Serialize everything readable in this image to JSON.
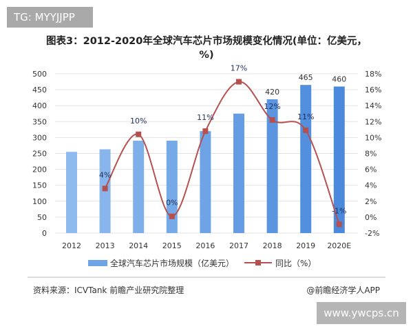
{
  "tag": "TG: MYYJJPP",
  "title": "图表3：2012-2020年全球汽车芯片市场规模变化情况(单位：亿美元，%)",
  "source": "资料来源：ICVTank 前瞻产业研究院整理",
  "credit": "@前瞻经济学人APP",
  "watermark": "www.ywcps.cn",
  "chart_data": {
    "type": "bar+line",
    "categories": [
      "2012",
      "2013",
      "2014",
      "2015",
      "2016",
      "2017",
      "2018",
      "2019",
      "2020E"
    ],
    "series": [
      {
        "name": "全球汽车芯片市场规模（亿美元）",
        "type": "bar",
        "axis": "left",
        "values": [
          255,
          263,
          290,
          290,
          320,
          375,
          420,
          465,
          460
        ],
        "data_labels": [
          "",
          "",
          "",
          "",
          "",
          "",
          "420",
          "465",
          "460"
        ],
        "color": "#5b97e0"
      },
      {
        "name": "同比（%）",
        "type": "line",
        "axis": "right",
        "values": [
          null,
          3.6,
          10.4,
          0.1,
          10.8,
          17,
          12.2,
          10.9,
          -0.9
        ],
        "data_labels": [
          "",
          "4%",
          "10%",
          "0%",
          "11%",
          "17%",
          "12%",
          "11%",
          "-1%"
        ],
        "color": "#b5504f"
      }
    ],
    "left_axis": {
      "ylim": [
        0,
        500
      ],
      "ticks": [
        "0",
        "50",
        "100",
        "150",
        "200",
        "250",
        "300",
        "350",
        "400",
        "450",
        "500"
      ]
    },
    "right_axis": {
      "ylim": [
        -2,
        18
      ],
      "ticks": [
        "-2%",
        "0%",
        "2%",
        "4%",
        "6%",
        "8%",
        "10%",
        "12%",
        "14%",
        "16%",
        "18%"
      ]
    },
    "grid": true,
    "legend": "bottom"
  }
}
